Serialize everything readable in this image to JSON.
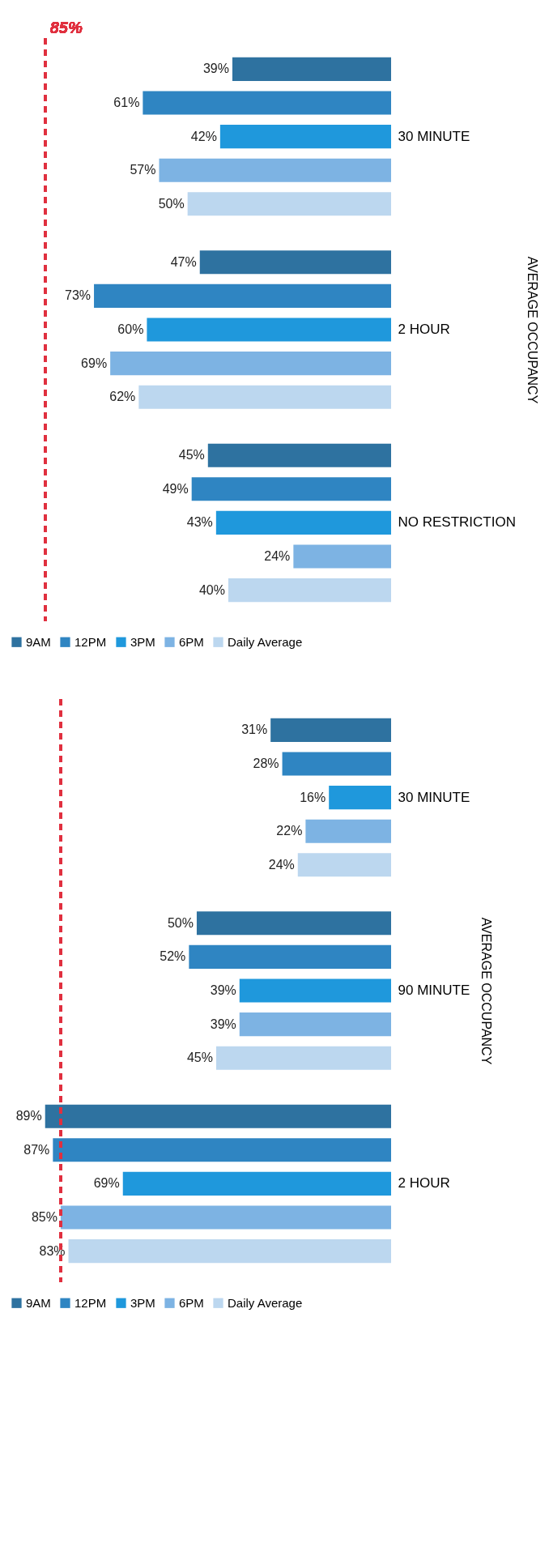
{
  "chart_data": [
    {
      "type": "bar",
      "orientation": "horizontal",
      "ylabel": "AVERAGE OCCUPANCY",
      "categories": [
        "30 MINUTE",
        "2 HOUR",
        "NO RESTRICTION"
      ],
      "series": [
        {
          "name": "9AM",
          "color": "#2e72a0",
          "values": [
            39,
            47,
            45
          ],
          "value_labels": [
            "39%",
            "47%",
            "45%"
          ]
        },
        {
          "name": "12PM",
          "color": "#2f85c2",
          "values": [
            61,
            73,
            49
          ],
          "value_labels": [
            "61%",
            "73%",
            "49%"
          ]
        },
        {
          "name": "3PM",
          "color": "#1f98dc",
          "values": [
            42,
            60,
            43
          ],
          "value_labels": [
            "42%",
            "60%",
            "43%"
          ]
        },
        {
          "name": "6PM",
          "color": "#7db3e3",
          "values": [
            57,
            69,
            24
          ],
          "value_labels": [
            "57%",
            "69%",
            "24%"
          ]
        },
        {
          "name": "Daily Average",
          "color": "#bcd7ef",
          "values": [
            50,
            62,
            40
          ],
          "value_labels": [
            "50%",
            "62%",
            "40%"
          ]
        }
      ],
      "legend": "bottom",
      "ref_lines": [
        {
          "axis": "x",
          "value": 85,
          "label": "85%",
          "color": "#e0303f",
          "line_style": "dashed"
        }
      ]
    },
    {
      "type": "bar",
      "orientation": "horizontal",
      "ylabel": "AVERAGE OCCUPANCY",
      "categories": [
        "30 MINUTE",
        "90 MINUTE",
        "2 HOUR"
      ],
      "series": [
        {
          "name": "9AM",
          "color": "#2e72a0",
          "values": [
            31,
            50,
            89
          ],
          "value_labels": [
            "31%",
            "50%",
            "89%"
          ]
        },
        {
          "name": "12PM",
          "color": "#2f85c2",
          "values": [
            28,
            52,
            87
          ],
          "value_labels": [
            "28%",
            "52%",
            "87%"
          ]
        },
        {
          "name": "3PM",
          "color": "#1f98dc",
          "values": [
            16,
            39,
            69
          ],
          "value_labels": [
            "16%",
            "39%",
            "69%"
          ]
        },
        {
          "name": "6PM",
          "color": "#7db3e3",
          "values": [
            22,
            39,
            85
          ],
          "value_labels": [
            "22%",
            "39%",
            "85%"
          ]
        },
        {
          "name": "Daily Average",
          "color": "#bcd7ef",
          "values": [
            24,
            45,
            83
          ],
          "value_labels": [
            "24%",
            "45%",
            "83%"
          ]
        }
      ],
      "legend": "bottom",
      "ref_lines": [
        {
          "axis": "x",
          "value": 85,
          "color": "#e0303f",
          "line_style": "dashed"
        }
      ]
    }
  ]
}
